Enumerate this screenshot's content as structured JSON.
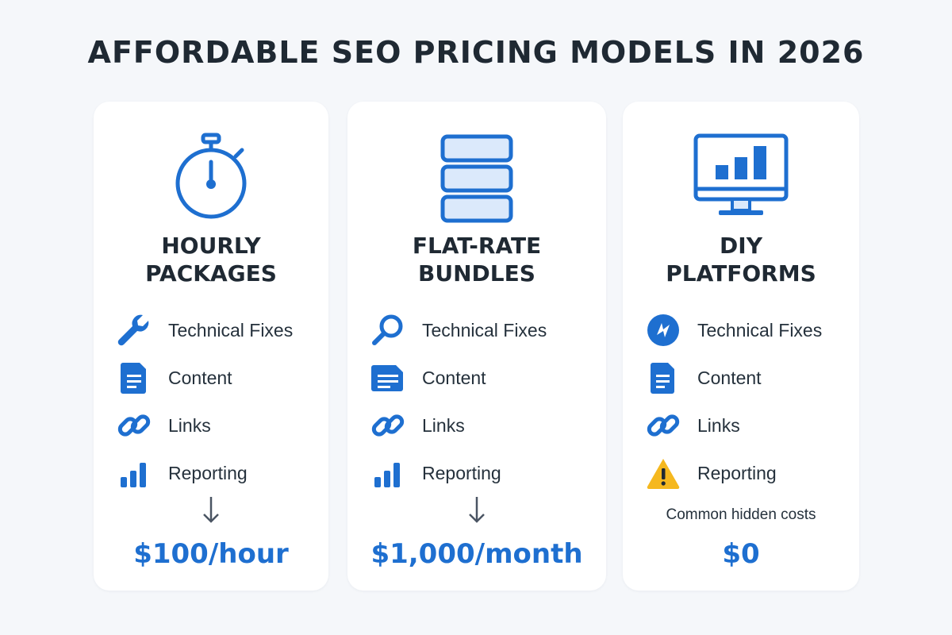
{
  "title": "AFFORDABLE SEO PRICING MODELS IN 2026",
  "colors": {
    "accent": "#1e6fd0",
    "accent_light": "#dbe9fb",
    "warning": "#f5b81f",
    "background": "#f5f7fa",
    "card": "#ffffff",
    "text": "#1f2933"
  },
  "cards": [
    {
      "icon": "stopwatch-icon",
      "title_line1": "HOURLY",
      "title_line2": "PACKAGES",
      "features": [
        {
          "icon": "wrench-icon",
          "label": "Technical Fixes"
        },
        {
          "icon": "document-icon",
          "label": "Content"
        },
        {
          "icon": "link-icon",
          "label": "Links"
        },
        {
          "icon": "bar-chart-icon",
          "label": "Reporting"
        }
      ],
      "arrow_icon": "arrow-down-icon",
      "price": "$100/hour"
    },
    {
      "icon": "stacked-bars-icon",
      "title_line1": "FLAT-RATE",
      "title_line2": "BUNDLES",
      "features": [
        {
          "icon": "magnifier-icon",
          "label": "Technical Fixes"
        },
        {
          "icon": "document-icon",
          "label": "Content"
        },
        {
          "icon": "link-icon",
          "label": "Links"
        },
        {
          "icon": "bar-chart-icon",
          "label": "Reporting"
        }
      ],
      "arrow_icon": "arrow-down-icon",
      "price": "$1,000/month"
    },
    {
      "icon": "monitor-chart-icon",
      "title_line1": "DIY",
      "title_line2": "PLATFORMS",
      "features": [
        {
          "icon": "bolt-circle-icon",
          "label": "Technical Fixes"
        },
        {
          "icon": "document-icon",
          "label": "Content"
        },
        {
          "icon": "link-icon",
          "label": "Links"
        },
        {
          "icon": "warning-icon",
          "label": "Reporting"
        }
      ],
      "note": "Common hidden costs",
      "price": "$0"
    }
  ]
}
